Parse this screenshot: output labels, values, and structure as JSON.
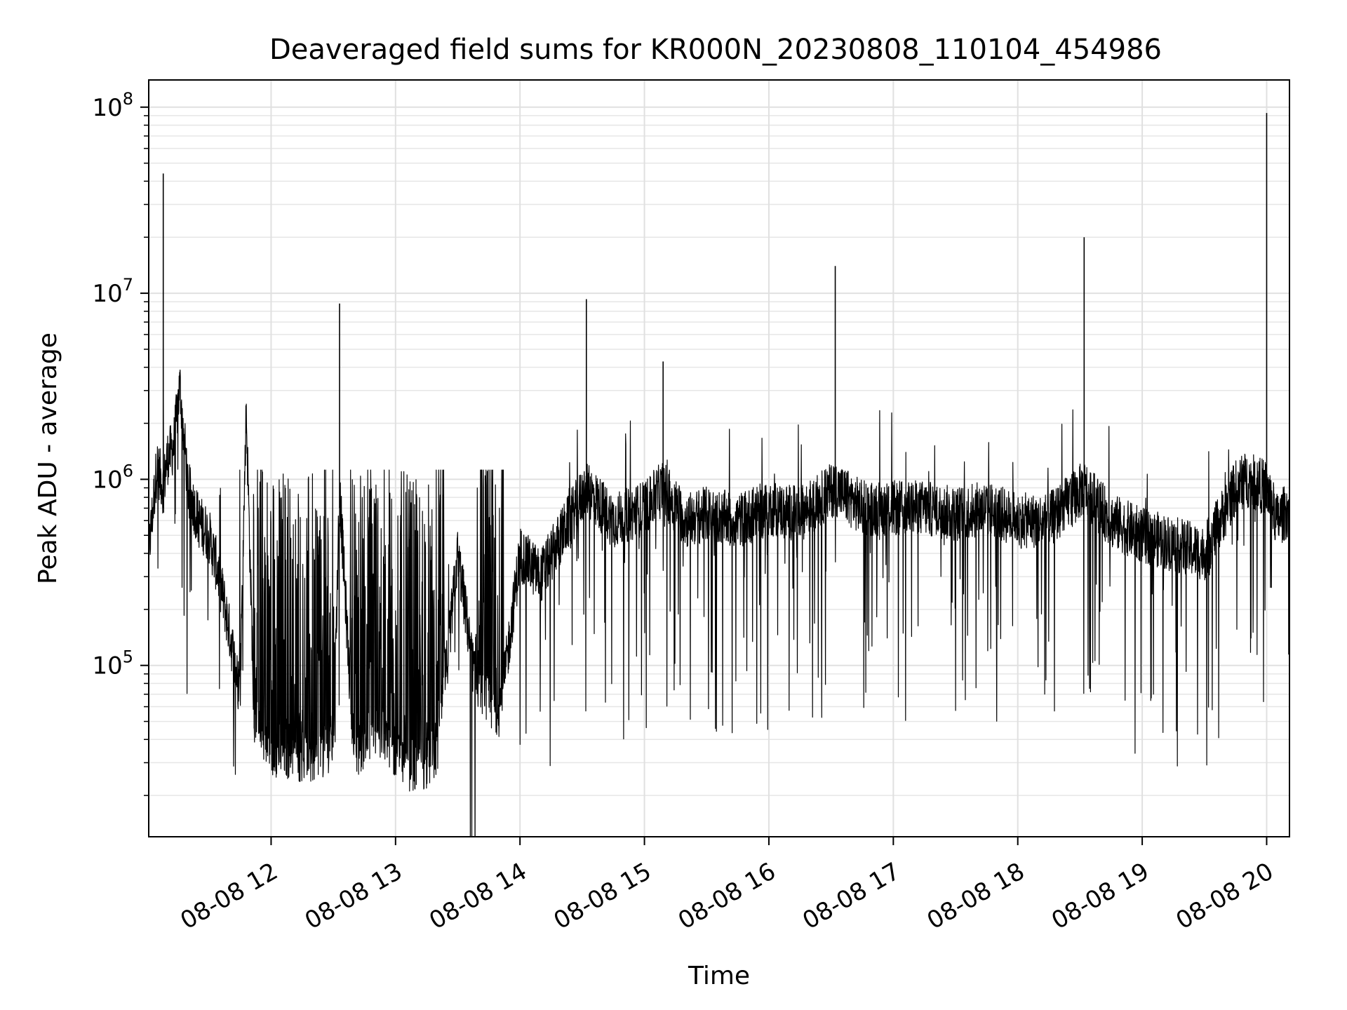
{
  "chart_data": {
    "type": "line",
    "title": "Deaveraged field sums for KR000N_20230808_110104_454986",
    "xlabel": "Time",
    "ylabel": "Peak ADU - average",
    "yscale": "log",
    "grid": true,
    "ylim": [
      12000,
      140000000
    ],
    "xlim": [
      "2023-08-08 11:01",
      "2023-08-08 20:11"
    ],
    "x_ticks": [
      {
        "value": "2023-08-08 12:00",
        "label": "08-08 12"
      },
      {
        "value": "2023-08-08 13:00",
        "label": "08-08 13"
      },
      {
        "value": "2023-08-08 14:00",
        "label": "08-08 14"
      },
      {
        "value": "2023-08-08 15:00",
        "label": "08-08 15"
      },
      {
        "value": "2023-08-08 16:00",
        "label": "08-08 16"
      },
      {
        "value": "2023-08-08 17:00",
        "label": "08-08 17"
      },
      {
        "value": "2023-08-08 18:00",
        "label": "08-08 18"
      },
      {
        "value": "2023-08-08 19:00",
        "label": "08-08 19"
      },
      {
        "value": "2023-08-08 20:00",
        "label": "08-08 20"
      }
    ],
    "y_ticks": [
      {
        "value": 100000,
        "base": "10",
        "exp": "5"
      },
      {
        "value": 1000000,
        "base": "10",
        "exp": "6"
      },
      {
        "value": 10000000,
        "base": "10",
        "exp": "7"
      },
      {
        "value": 100000000,
        "base": "10",
        "exp": "8"
      }
    ],
    "line_color": "#000000",
    "series": [
      {
        "x": [
          "2023-08-08 11:01",
          "2023-08-08 11:05",
          "2023-08-08 11:08",
          "2023-08-08 11:10",
          "2023-08-08 11:13",
          "2023-08-08 11:16",
          "2023-08-08 11:20",
          "2023-08-08 11:25",
          "2023-08-08 11:30",
          "2023-08-08 11:35",
          "2023-08-08 11:40",
          "2023-08-08 11:45",
          "2023-08-08 11:48",
          "2023-08-08 11:52",
          "2023-08-08 11:55",
          "2023-08-08 12:00",
          "2023-08-08 12:10",
          "2023-08-08 12:20",
          "2023-08-08 12:30",
          "2023-08-08 12:33",
          "2023-08-08 12:40",
          "2023-08-08 12:50",
          "2023-08-08 13:00",
          "2023-08-08 13:10",
          "2023-08-08 13:20",
          "2023-08-08 13:30",
          "2023-08-08 13:40",
          "2023-08-08 13:50",
          "2023-08-08 14:00",
          "2023-08-08 14:10",
          "2023-08-08 14:20",
          "2023-08-08 14:32",
          "2023-08-08 14:45",
          "2023-08-08 15:00",
          "2023-08-08 15:09",
          "2023-08-08 15:20",
          "2023-08-08 15:30",
          "2023-08-08 15:45",
          "2023-08-08 16:00",
          "2023-08-08 16:15",
          "2023-08-08 16:32",
          "2023-08-08 16:45",
          "2023-08-08 17:00",
          "2023-08-08 17:15",
          "2023-08-08 17:30",
          "2023-08-08 17:45",
          "2023-08-08 18:00",
          "2023-08-08 18:15",
          "2023-08-08 18:32",
          "2023-08-08 18:45",
          "2023-08-08 19:00",
          "2023-08-08 19:15",
          "2023-08-08 19:30",
          "2023-08-08 19:45",
          "2023-08-08 19:50",
          "2023-08-08 20:00",
          "2023-08-08 20:05",
          "2023-08-08 20:11"
        ],
        "y": [
          400000,
          1200000,
          44000000,
          1300000,
          1500000,
          3200000,
          900000,
          600000,
          500000,
          300000,
          150000,
          70000,
          2400000,
          45000,
          35000,
          32000,
          30000,
          28000,
          35000,
          8800000,
          30000,
          40000,
          30000,
          25000,
          30000,
          400000,
          60000,
          50000,
          400000,
          300000,
          500000,
          9300000,
          600000,
          700000,
          4300000,
          600000,
          650000,
          600000,
          700000,
          650000,
          14000000,
          700000,
          700000,
          700000,
          650000,
          700000,
          600000,
          600000,
          20000000,
          600000,
          500000,
          450000,
          400000,
          900000,
          1000000,
          93000000,
          600000,
          700000
        ]
      }
    ]
  }
}
